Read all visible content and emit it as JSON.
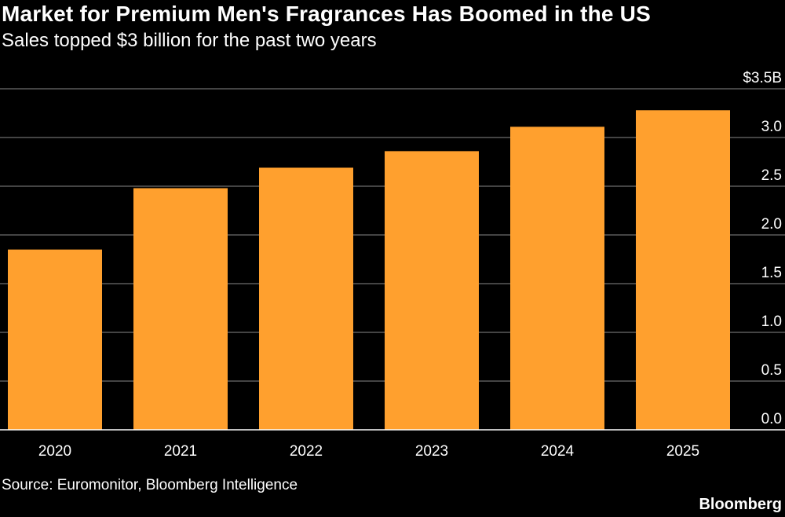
{
  "header": {
    "title": "Market for Premium Men's Fragrances Has Boomed in the US",
    "subtitle": "Sales topped $3 billion for the past two years"
  },
  "footer": {
    "source": "Source: Euromonitor, Bloomberg Intelligence",
    "brand": "Bloomberg"
  },
  "colors": {
    "background": "#000000",
    "bar": "#FFA02E",
    "gridline": "#5a5a5a",
    "text": "#ffffff"
  },
  "chart_data": {
    "type": "bar",
    "title": "Market for Premium Men's Fragrances Has Boomed in the US",
    "subtitle": "Sales topped $3 billion for the past two years",
    "categories": [
      "2020",
      "2021",
      "2022",
      "2023",
      "2024",
      "2025"
    ],
    "values": [
      1.85,
      2.48,
      2.69,
      2.86,
      3.11,
      3.28
    ],
    "xlabel": "",
    "ylabel": "",
    "unit": "$B",
    "ylim": [
      0,
      3.5
    ],
    "yticks": [
      0,
      0.5,
      1.0,
      1.5,
      2.0,
      2.5,
      3.0,
      3.5
    ],
    "ytick_labels": [
      "0.0",
      "0.5",
      "1.0",
      "1.5",
      "2.0",
      "2.5",
      "3.0",
      "$3.5B"
    ],
    "y_axis_position": "right",
    "grid": true,
    "legend": "none"
  }
}
